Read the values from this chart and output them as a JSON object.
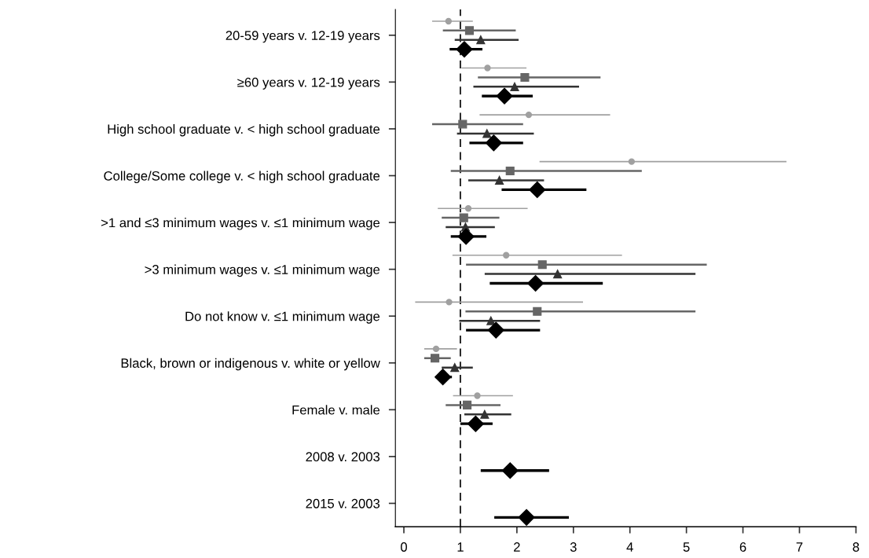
{
  "chart_data": {
    "type": "scatter",
    "orientation": "horizontal",
    "categories": [
      "20-59 years v. 12-19 years",
      "≥60 years v. 12-19 years",
      "High school graduate v. < high school graduate",
      "College/Some college v. < high school graduate",
      ">1 and ≤3 minimum wages v. ≤1 minimum wage",
      ">3 minimum wages v. ≤1 minimum wage",
      "Do not know v. ≤1 minimum wage",
      "Black, brown or indigenous v. white or yellow",
      "Female v. male",
      "2008 v. 2003",
      "2015 v. 2003"
    ],
    "series": [
      {
        "color": "#a0a0a0",
        "marker": "circle",
        "values": [
          0.79,
          1.48,
          2.21,
          4.03,
          1.14,
          1.81,
          0.8,
          0.57,
          1.3,
          null,
          null
        ],
        "errors": [
          [
            0.5,
            1.22
          ],
          [
            1.02,
            2.17
          ],
          [
            1.34,
            3.65
          ],
          [
            2.4,
            6.77
          ],
          [
            0.6,
            2.19
          ],
          [
            0.86,
            3.86
          ],
          [
            0.2,
            3.17
          ],
          [
            0.36,
            0.94
          ],
          [
            0.87,
            1.93
          ],
          null,
          null
        ]
      },
      {
        "color": "#666666",
        "marker": "square",
        "values": [
          1.16,
          2.14,
          1.04,
          1.88,
          1.06,
          2.45,
          2.36,
          0.55,
          1.12,
          null,
          null
        ],
        "errors": [
          [
            0.69,
            1.98
          ],
          [
            1.31,
            3.48
          ],
          [
            0.5,
            2.11
          ],
          [
            0.83,
            4.21
          ],
          [
            0.67,
            1.69
          ],
          [
            1.1,
            5.36
          ],
          [
            1.09,
            5.16
          ],
          [
            0.36,
            0.83
          ],
          [
            0.74,
            1.71
          ],
          null,
          null
        ]
      },
      {
        "color": "#333333",
        "marker": "triangle",
        "values": [
          1.36,
          1.96,
          1.47,
          1.69,
          1.09,
          2.72,
          1.54,
          0.9,
          1.43,
          null,
          null
        ],
        "errors": [
          [
            0.9,
            2.03
          ],
          [
            1.23,
            3.1
          ],
          [
            0.94,
            2.3
          ],
          [
            1.14,
            2.48
          ],
          [
            0.74,
            1.61
          ],
          [
            1.43,
            5.16
          ],
          [
            0.98,
            2.41
          ],
          [
            0.67,
            1.22
          ],
          [
            1.07,
            1.9
          ],
          null,
          null
        ]
      },
      {
        "color": "#000000",
        "marker": "diamond",
        "values": [
          1.07,
          1.78,
          1.59,
          2.36,
          1.1,
          2.33,
          1.63,
          0.69,
          1.27,
          1.88,
          2.17
        ],
        "errors": [
          [
            0.81,
            1.39
          ],
          [
            1.38,
            2.28
          ],
          [
            1.16,
            2.11
          ],
          [
            1.73,
            3.23
          ],
          [
            0.83,
            1.46
          ],
          [
            1.52,
            3.52
          ],
          [
            1.1,
            2.41
          ],
          [
            0.56,
            0.85
          ],
          [
            1.0,
            1.57
          ],
          [
            1.36,
            2.57
          ],
          [
            1.6,
            2.92
          ]
        ]
      }
    ],
    "xlim": [
      -0.15,
      8
    ],
    "xticks": [
      0,
      1,
      2,
      3,
      4,
      5,
      6,
      7,
      8
    ],
    "ref_lines": [
      {
        "axis": "x",
        "value": 1,
        "color": "#000000",
        "line_style": "dashed"
      }
    ],
    "grid": false,
    "legend": false
  }
}
